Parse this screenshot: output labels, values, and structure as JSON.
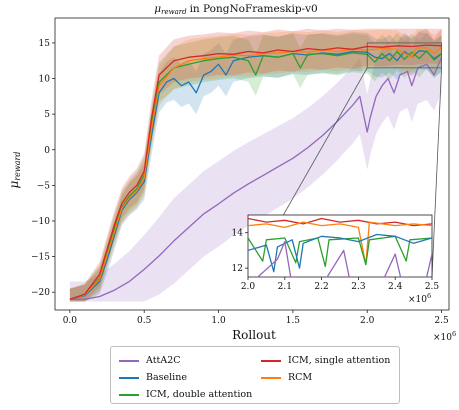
{
  "chart_data": {
    "type": "line",
    "title_text": "in PongNoFrameskip-v0",
    "title_symbol": "μ",
    "title_subscript": "reward",
    "xlabel": "Rollout",
    "ylabel_symbol": "μ",
    "ylabel_subscript": "reward",
    "x_multiplier": "×10",
    "x_multiplier_exp": "6",
    "xlim": [
      -0.1,
      2.55
    ],
    "ylim": [
      -22.5,
      18.5
    ],
    "x_ticks": [
      "0.0",
      "0.5",
      "1.0",
      "1.5",
      "2.0",
      "2.5"
    ],
    "y_ticks": [
      "−20",
      "−15",
      "−10",
      "−5",
      "0",
      "5",
      "10",
      "15"
    ],
    "grid": false,
    "legend_position": "below",
    "series": [
      {
        "name": "AttA2C",
        "color": "#9467bd",
        "points": [
          [
            0,
            -21
          ],
          [
            0.1,
            -21
          ],
          [
            0.2,
            -20.6
          ],
          [
            0.3,
            -19.7
          ],
          [
            0.4,
            -18.5
          ],
          [
            0.5,
            -16.8
          ],
          [
            0.6,
            -14.9
          ],
          [
            0.7,
            -12.8
          ],
          [
            0.8,
            -10.9
          ],
          [
            0.9,
            -9.0
          ],
          [
            1.0,
            -7.6
          ],
          [
            1.1,
            -6.1
          ],
          [
            1.2,
            -4.8
          ],
          [
            1.3,
            -3.6
          ],
          [
            1.4,
            -2.4
          ],
          [
            1.5,
            -1.2
          ],
          [
            1.6,
            0.3
          ],
          [
            1.7,
            2.0
          ],
          [
            1.8,
            4.0
          ],
          [
            1.9,
            6.2
          ],
          [
            1.95,
            7.5
          ],
          [
            2.0,
            2.5
          ],
          [
            2.02,
            4.5
          ],
          [
            2.06,
            7.5
          ],
          [
            2.1,
            9.0
          ],
          [
            2.14,
            10.0
          ],
          [
            2.18,
            8.0
          ],
          [
            2.22,
            10.5
          ],
          [
            2.27,
            11.0
          ],
          [
            2.3,
            9.0
          ],
          [
            2.34,
            11.5
          ],
          [
            2.4,
            12.0
          ],
          [
            2.45,
            10.5
          ],
          [
            2.5,
            13.0
          ]
        ],
        "band": [
          2.5,
          6.0
        ]
      },
      {
        "name": "Baseline",
        "color": "#1f77b4",
        "points": [
          [
            0,
            -21
          ],
          [
            0.1,
            -20.5
          ],
          [
            0.2,
            -18.5
          ],
          [
            0.25,
            -15.5
          ],
          [
            0.3,
            -12.0
          ],
          [
            0.35,
            -8.5
          ],
          [
            0.4,
            -7.0
          ],
          [
            0.45,
            -6.0
          ],
          [
            0.5,
            -4.5
          ],
          [
            0.55,
            2.0
          ],
          [
            0.6,
            8.0
          ],
          [
            0.65,
            9.5
          ],
          [
            0.7,
            10.0
          ],
          [
            0.75,
            9.0
          ],
          [
            0.8,
            9.5
          ],
          [
            0.85,
            8.0
          ],
          [
            0.9,
            10.5
          ],
          [
            0.95,
            11.0
          ],
          [
            1.0,
            12.0
          ],
          [
            1.05,
            10.5
          ],
          [
            1.1,
            12.5
          ],
          [
            1.2,
            13.0
          ],
          [
            1.3,
            13.2
          ],
          [
            1.4,
            13.0
          ],
          [
            1.5,
            13.5
          ],
          [
            1.6,
            13.3
          ],
          [
            1.7,
            13.6
          ],
          [
            1.8,
            13.4
          ],
          [
            1.9,
            13.8
          ],
          [
            2.0,
            13.7
          ],
          [
            2.05,
            13.0
          ],
          [
            2.1,
            12.8
          ],
          [
            2.15,
            13.5
          ],
          [
            2.2,
            12.5
          ],
          [
            2.25,
            13.8
          ],
          [
            2.3,
            13.0
          ],
          [
            2.35,
            13.9
          ],
          [
            2.4,
            13.8
          ],
          [
            2.45,
            12.8
          ],
          [
            2.5,
            13.5
          ]
        ],
        "band": [
          1.5,
          3.0
        ]
      },
      {
        "name": "ICM, double attention",
        "color": "#2ca02c",
        "points": [
          [
            0,
            -21
          ],
          [
            0.1,
            -20.4
          ],
          [
            0.2,
            -18.0
          ],
          [
            0.25,
            -14.5
          ],
          [
            0.3,
            -11.0
          ],
          [
            0.35,
            -8.0
          ],
          [
            0.4,
            -6.5
          ],
          [
            0.45,
            -5.5
          ],
          [
            0.5,
            -3.5
          ],
          [
            0.55,
            3.5
          ],
          [
            0.6,
            9.5
          ],
          [
            0.7,
            11.5
          ],
          [
            0.8,
            12.0
          ],
          [
            0.9,
            12.5
          ],
          [
            1.0,
            12.8
          ],
          [
            1.1,
            13.0
          ],
          [
            1.2,
            12.5
          ],
          [
            1.25,
            10.5
          ],
          [
            1.3,
            13.2
          ],
          [
            1.4,
            13.0
          ],
          [
            1.5,
            13.5
          ],
          [
            1.55,
            11.5
          ],
          [
            1.6,
            13.4
          ],
          [
            1.7,
            13.5
          ],
          [
            1.8,
            13.2
          ],
          [
            1.9,
            13.6
          ],
          [
            2.0,
            13.4
          ],
          [
            2.05,
            12.3
          ],
          [
            2.1,
            13.5
          ],
          [
            2.15,
            12.5
          ],
          [
            2.2,
            13.8
          ],
          [
            2.25,
            12.7
          ],
          [
            2.3,
            13.7
          ],
          [
            2.35,
            12.8
          ],
          [
            2.4,
            13.9
          ],
          [
            2.45,
            12.6
          ],
          [
            2.5,
            13.5
          ]
        ],
        "band": [
          1.5,
          3.0
        ]
      },
      {
        "name": "ICM, single attention",
        "color": "#d62728",
        "points": [
          [
            0,
            -21
          ],
          [
            0.1,
            -20.3
          ],
          [
            0.2,
            -17.5
          ],
          [
            0.25,
            -14.0
          ],
          [
            0.3,
            -10.5
          ],
          [
            0.35,
            -7.5
          ],
          [
            0.4,
            -6.0
          ],
          [
            0.45,
            -5.0
          ],
          [
            0.5,
            -3.0
          ],
          [
            0.55,
            4.5
          ],
          [
            0.6,
            10.5
          ],
          [
            0.7,
            12.5
          ],
          [
            0.8,
            13.0
          ],
          [
            0.9,
            13.2
          ],
          [
            1.0,
            13.5
          ],
          [
            1.1,
            13.4
          ],
          [
            1.2,
            13.8
          ],
          [
            1.3,
            13.6
          ],
          [
            1.4,
            14.0
          ],
          [
            1.5,
            13.8
          ],
          [
            1.6,
            14.2
          ],
          [
            1.7,
            14.0
          ],
          [
            1.8,
            14.3
          ],
          [
            1.9,
            14.1
          ],
          [
            2.0,
            14.5
          ],
          [
            2.1,
            14.4
          ],
          [
            2.2,
            14.6
          ],
          [
            2.3,
            14.5
          ],
          [
            2.4,
            14.7
          ],
          [
            2.5,
            14.6
          ]
        ],
        "band": [
          1.5,
          3.0
        ]
      },
      {
        "name": "RCM",
        "color": "#ff7f0e",
        "points": [
          [
            0,
            -21
          ],
          [
            0.1,
            -20.4
          ],
          [
            0.2,
            -18.2
          ],
          [
            0.25,
            -14.8
          ],
          [
            0.3,
            -11.5
          ],
          [
            0.35,
            -8.2
          ],
          [
            0.4,
            -6.8
          ],
          [
            0.45,
            -5.8
          ],
          [
            0.5,
            -4.0
          ],
          [
            0.55,
            3.0
          ],
          [
            0.6,
            9.0
          ],
          [
            0.7,
            11.5
          ],
          [
            0.8,
            12.5
          ],
          [
            0.9,
            12.8
          ],
          [
            1.0,
            13.0
          ],
          [
            1.1,
            13.3
          ],
          [
            1.2,
            13.2
          ],
          [
            1.3,
            13.5
          ],
          [
            1.4,
            13.6
          ],
          [
            1.5,
            13.8
          ],
          [
            1.6,
            13.7
          ],
          [
            1.7,
            14.0
          ],
          [
            1.8,
            13.8
          ],
          [
            1.9,
            14.1
          ],
          [
            2.0,
            14.0
          ],
          [
            2.1,
            14.2
          ],
          [
            2.2,
            14.1
          ],
          [
            2.3,
            13.0
          ],
          [
            2.33,
            14.3
          ],
          [
            2.4,
            14.3
          ],
          [
            2.45,
            13.5
          ],
          [
            2.5,
            14.4
          ]
        ],
        "band": [
          1.5,
          3.0
        ]
      }
    ],
    "inset": {
      "xlim": [
        2.0,
        2.5
      ],
      "ylim": [
        11.5,
        15.0
      ],
      "x_ticks": [
        "2.0",
        "2.1",
        "2.2",
        "2.3",
        "2.4",
        "2.5"
      ],
      "y_ticks": [
        "12",
        "14"
      ],
      "x_multiplier": "×10",
      "x_multiplier_exp": "6",
      "series": [
        {
          "name": "ICM, single attention",
          "color": "#d62728",
          "points": [
            [
              2.0,
              14.8
            ],
            [
              2.05,
              14.6
            ],
            [
              2.1,
              14.7
            ],
            [
              2.15,
              14.5
            ],
            [
              2.2,
              14.8
            ],
            [
              2.25,
              14.6
            ],
            [
              2.3,
              14.7
            ],
            [
              2.35,
              14.5
            ],
            [
              2.4,
              14.6
            ],
            [
              2.45,
              14.4
            ],
            [
              2.5,
              14.5
            ]
          ]
        },
        {
          "name": "RCM",
          "color": "#ff7f0e",
          "points": [
            [
              2.0,
              14.4
            ],
            [
              2.05,
              14.5
            ],
            [
              2.1,
              14.3
            ],
            [
              2.15,
              14.6
            ],
            [
              2.2,
              14.4
            ],
            [
              2.25,
              14.5
            ],
            [
              2.3,
              14.3
            ],
            [
              2.32,
              12.2
            ],
            [
              2.33,
              14.6
            ],
            [
              2.4,
              14.4
            ],
            [
              2.45,
              14.5
            ],
            [
              2.5,
              14.4
            ]
          ]
        },
        {
          "name": "ICM, double attention",
          "color": "#2ca02c",
          "points": [
            [
              2.0,
              13.7
            ],
            [
              2.04,
              12.4
            ],
            [
              2.05,
              13.6
            ],
            [
              2.1,
              13.7
            ],
            [
              2.13,
              12.3
            ],
            [
              2.14,
              13.5
            ],
            [
              2.19,
              13.7
            ],
            [
              2.21,
              12.1
            ],
            [
              2.22,
              13.6
            ],
            [
              2.3,
              13.7
            ],
            [
              2.32,
              12.2
            ],
            [
              2.33,
              13.6
            ],
            [
              2.4,
              13.8
            ],
            [
              2.43,
              12.4
            ],
            [
              2.44,
              13.6
            ],
            [
              2.5,
              13.7
            ]
          ]
        },
        {
          "name": "Baseline",
          "color": "#1f77b4",
          "points": [
            [
              2.0,
              13.0
            ],
            [
              2.05,
              13.3
            ],
            [
              2.07,
              11.8
            ],
            [
              2.08,
              13.2
            ],
            [
              2.12,
              13.6
            ],
            [
              2.14,
              12.0
            ],
            [
              2.15,
              13.4
            ],
            [
              2.2,
              13.8
            ],
            [
              2.25,
              13.7
            ],
            [
              2.3,
              13.5
            ],
            [
              2.35,
              13.9
            ],
            [
              2.4,
              13.8
            ],
            [
              2.45,
              13.4
            ],
            [
              2.5,
              13.7
            ]
          ]
        },
        {
          "name": "AttA2C",
          "color": "#9467bd",
          "points": [
            [
              2.0,
              11.0
            ],
            [
              2.08,
              12.5
            ],
            [
              2.1,
              13.5
            ],
            [
              2.12,
              11.0
            ],
            [
              2.2,
              11.0
            ],
            [
              2.26,
              13.0
            ],
            [
              2.28,
              11.0
            ],
            [
              2.36,
              11.0
            ],
            [
              2.4,
              12.8
            ],
            [
              2.42,
              11.0
            ],
            [
              2.48,
              11.0
            ],
            [
              2.5,
              12.8
            ]
          ]
        }
      ]
    }
  }
}
